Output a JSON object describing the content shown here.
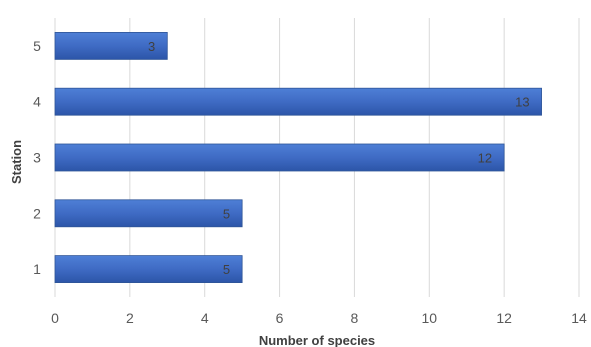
{
  "chart_data": {
    "type": "bar",
    "orientation": "horizontal",
    "categories": [
      "1",
      "2",
      "3",
      "4",
      "5"
    ],
    "values": [
      5,
      5,
      12,
      13,
      3
    ],
    "xlabel": "Number of species",
    "ylabel": "Station",
    "xlim": [
      0,
      14
    ],
    "x_ticks": [
      0,
      2,
      4,
      6,
      8,
      10,
      12,
      14
    ],
    "grid": "vertical",
    "data_labels": true,
    "bar_color": "#4472C4",
    "bar_color_dark": "#2F5597"
  }
}
